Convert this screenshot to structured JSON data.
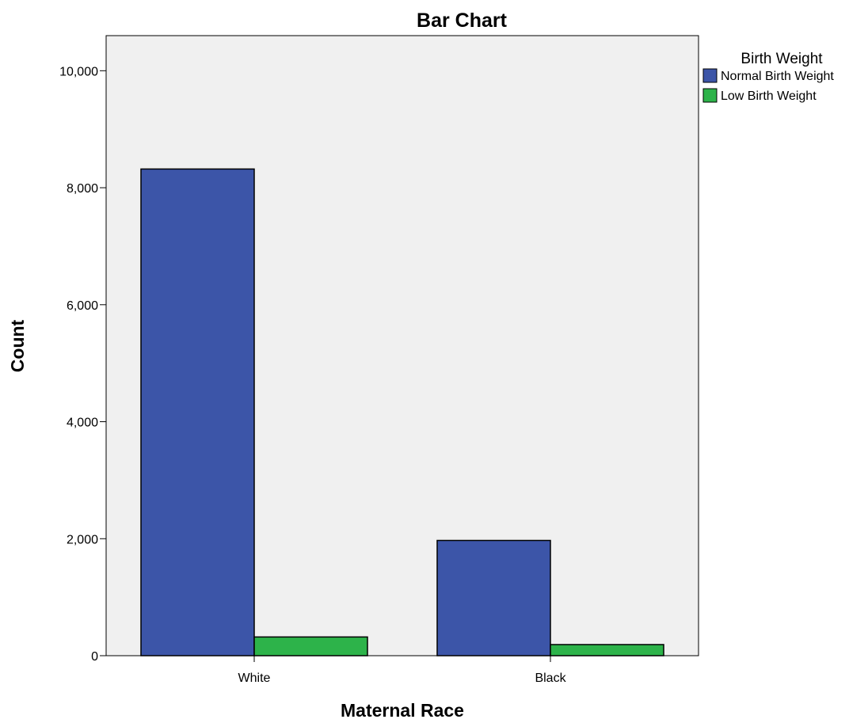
{
  "chart_data": {
    "type": "bar",
    "title": "Bar Chart",
    "xlabel": "Maternal Race",
    "ylabel": "Count",
    "categories": [
      "White",
      "Black"
    ],
    "series": [
      {
        "name": "Normal Birth Weight",
        "color": "#3C55A8",
        "values": [
          8320,
          1970
        ]
      },
      {
        "name": "Low Birth Weight",
        "color": "#2DB34A",
        "values": [
          320,
          190
        ]
      }
    ],
    "ylim": [
      0,
      10600
    ],
    "yticks": [
      0,
      2000,
      4000,
      6000,
      8000,
      10000
    ],
    "ytick_labels": [
      "0",
      "2,000",
      "4,000",
      "6,000",
      "8,000",
      "10,000"
    ],
    "legend": {
      "title": "Birth Weight",
      "placement": "right"
    },
    "plot_background": "#F0F0F0",
    "grid": false
  }
}
